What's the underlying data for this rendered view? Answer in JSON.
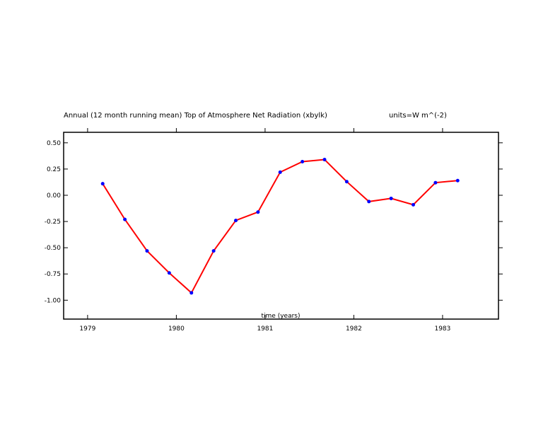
{
  "chart_data": {
    "type": "line",
    "title": "Annual (12 month running mean) Top of Atmosphere Net Radiation (xbylk)",
    "units": "units=W m^(-2)",
    "xlabel": "time (years)",
    "ylabel": "",
    "xlim": [
      1978.73,
      1983.63
    ],
    "ylim": [
      -1.18,
      0.6
    ],
    "x_ticks": [
      1979,
      1980,
      1981,
      1982,
      1983
    ],
    "x_tick_labels": [
      "1979",
      "1980",
      "1981",
      "1982",
      "1983"
    ],
    "y_ticks": [
      -1.0,
      -0.75,
      -0.5,
      -0.25,
      0.0,
      0.25,
      0.5
    ],
    "y_tick_labels": [
      "-1.00",
      "-0.75",
      "-0.50",
      "-0.25",
      "0.00",
      "0.25",
      "0.50"
    ],
    "grid": false,
    "series": [
      {
        "line_color": "#ff0000",
        "marker_color": "#0000ff",
        "x": [
          1979.17,
          1979.42,
          1979.67,
          1979.92,
          1980.17,
          1980.42,
          1980.67,
          1980.92,
          1981.17,
          1981.42,
          1981.67,
          1981.92,
          1982.17,
          1982.42,
          1982.67,
          1982.92,
          1983.17
        ],
        "y": [
          0.11,
          -0.23,
          -0.53,
          -0.74,
          -0.93,
          -0.53,
          -0.24,
          -0.16,
          0.22,
          0.32,
          0.34,
          0.13,
          -0.06,
          -0.03,
          -0.09,
          0.12,
          0.14
        ]
      }
    ]
  }
}
